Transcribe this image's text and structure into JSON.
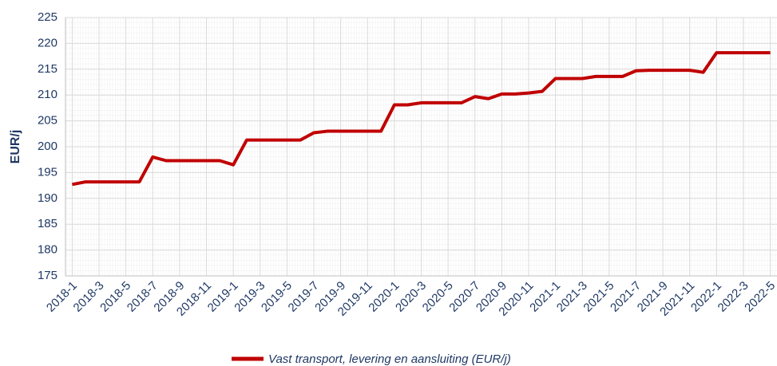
{
  "chart_data": {
    "type": "line",
    "y_label": "EUR/j",
    "categories": [
      "2018-1",
      null,
      "2018-3",
      null,
      "2018-5",
      null,
      "2018-7",
      null,
      "2018-9",
      null,
      "2018-11",
      null,
      "2019-1",
      null,
      "2019-3",
      null,
      "2019-5",
      null,
      "2019-7",
      null,
      "2019-9",
      null,
      "2019-11",
      null,
      "2020-1",
      null,
      "2020-3",
      null,
      "2020-5",
      null,
      "2020-7",
      null,
      "2020-9",
      null,
      "2020-11",
      null,
      "2021-1",
      null,
      "2021-3",
      null,
      "2021-5",
      null,
      "2021-7",
      null,
      "2021-9",
      null,
      "2021-11",
      null,
      "2022-1",
      null,
      "2022-3",
      null,
      "2022-5"
    ],
    "series": [
      {
        "name": "Vast transport, levering en aansluiting (EUR/j)",
        "color": "#c00000",
        "values": [
          192.7,
          193.2,
          193.2,
          193.2,
          193.2,
          193.2,
          198.0,
          197.3,
          197.3,
          197.3,
          197.3,
          197.3,
          196.5,
          201.3,
          201.3,
          201.3,
          201.3,
          201.3,
          202.7,
          203.0,
          203.0,
          203.0,
          203.0,
          203.0,
          208.1,
          208.1,
          208.5,
          208.5,
          208.5,
          208.5,
          209.7,
          209.3,
          210.2,
          210.2,
          210.4,
          210.7,
          213.2,
          213.2,
          213.2,
          213.6,
          213.6,
          213.6,
          214.7,
          214.8,
          214.8,
          214.8,
          214.8,
          214.4,
          218.2,
          218.2,
          218.2,
          218.2,
          218.2
        ]
      }
    ],
    "ylim": [
      175,
      225
    ],
    "yticks": [
      175,
      180,
      185,
      190,
      195,
      200,
      205,
      210,
      215,
      220,
      225
    ],
    "grid": true
  }
}
